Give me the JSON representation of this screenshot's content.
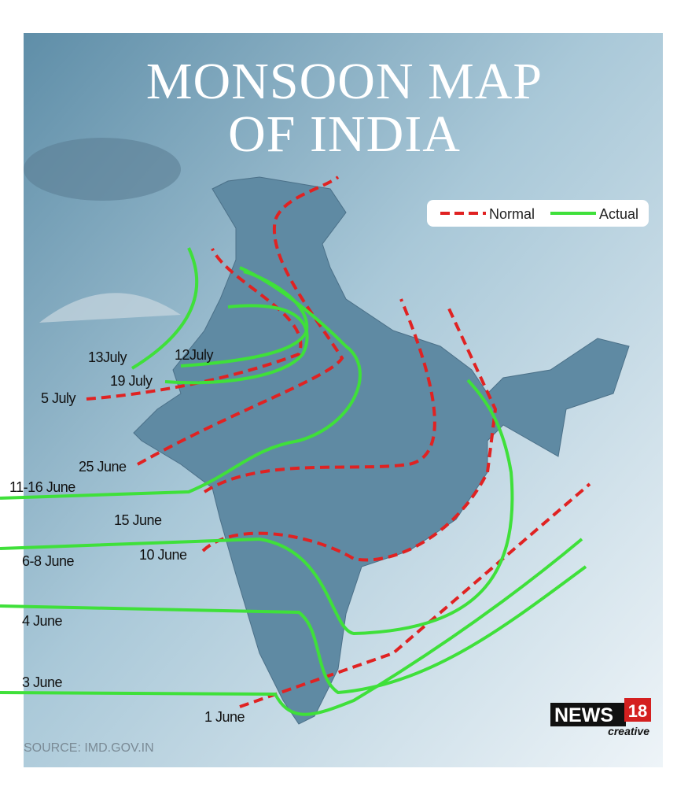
{
  "title": [
    "MONSOON MAP",
    "OF INDIA"
  ],
  "legend": [
    {
      "label": "Normal",
      "color": "#e02222"
    },
    {
      "label": "Actual",
      "color": "#3fe03a"
    }
  ],
  "labels": [
    "13July",
    "12July",
    "19 July",
    "5 July",
    "25 June",
    "11-16 June",
    "15 June",
    "6-8 June",
    "10 June",
    "4 June",
    "3 June",
    "1 June"
  ],
  "source": "SOURCE: IMD.GOV.IN",
  "logo": {
    "brand": "NEWS",
    "number": "18",
    "tagline": "creative"
  }
}
